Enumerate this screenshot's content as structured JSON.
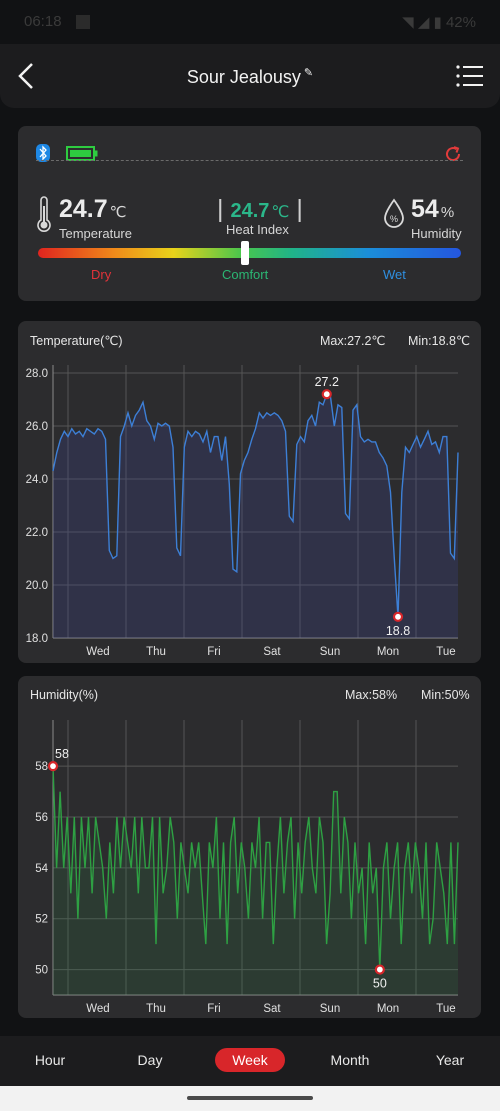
{
  "status": {
    "time": "06:18",
    "battery": "42%"
  },
  "header": {
    "title": "Sour Jealousy"
  },
  "summary": {
    "temperature": {
      "value": "24.7",
      "unit": "℃",
      "label": "Temperature"
    },
    "heat_index": {
      "value": "24.7",
      "unit": "℃",
      "label": "Heat Index"
    },
    "humidity": {
      "value": "54",
      "unit": "%",
      "label": "Humidity"
    },
    "scale": {
      "dry": "Dry",
      "comfort": "Comfort",
      "wet": "Wet"
    },
    "comfort_level": 0.49
  },
  "colors": {
    "accent": "#d8262a",
    "temp_line": "#3d7fd6",
    "hum_line": "#2ea043",
    "heat_index": "#2bb78a",
    "dry": "#e0333a",
    "comfort": "#2bb673",
    "wet": "#2f8fe0",
    "bluetooth": "#1e88e5",
    "battery": "#2ecc40"
  },
  "chart_data": [
    {
      "type": "line",
      "title": "Temperature(℃)",
      "max_label": "Max:27.2℃",
      "min_label": "Min:18.8℃",
      "ylim": [
        18,
        28
      ],
      "yticks": [
        "28.0",
        "26.0",
        "24.0",
        "22.0",
        "20.0",
        "18.0"
      ],
      "xticks": [
        "Wed",
        "Thu",
        "Fri",
        "Sat",
        "Sun",
        "Mon",
        "Tue"
      ],
      "values": [
        24.3,
        25.0,
        25.5,
        25.8,
        25.6,
        25.9,
        25.7,
        25.8,
        25.6,
        25.9,
        25.8,
        25.7,
        25.9,
        25.8,
        25.5,
        21.3,
        21.0,
        21.1,
        25.6,
        26.0,
        26.5,
        26.0,
        26.4,
        26.6,
        26.9,
        26.2,
        26.0,
        25.5,
        26.1,
        26.0,
        26.1,
        26.0,
        25.2,
        21.4,
        21.1,
        25.2,
        25.8,
        25.6,
        25.8,
        25.7,
        25.4,
        25.8,
        25.0,
        25.6,
        25.6,
        24.7,
        25.6,
        23.8,
        20.6,
        20.5,
        24.2,
        24.7,
        25.0,
        25.5,
        25.9,
        26.5,
        26.3,
        26.5,
        26.4,
        26.5,
        26.4,
        26.2,
        25.8,
        22.6,
        22.4,
        25.3,
        25.6,
        25.4,
        26.2,
        26.4,
        26.0,
        26.9,
        26.8,
        27.2,
        27.1,
        26.0,
        26.8,
        26.7,
        22.7,
        22.5,
        26.6,
        26.8,
        25.6,
        25.4,
        25.5,
        25.4,
        25.4,
        25.0,
        24.8,
        24.5,
        23.5,
        21.0,
        18.8,
        23.5,
        25.2,
        25.0,
        25.3,
        25.6,
        25.2,
        25.5,
        25.8,
        25.3,
        25.4,
        25.0,
        25.6,
        25.6,
        21.2,
        21.0,
        25.0
      ],
      "max_point": {
        "label": "27.2"
      },
      "min_point": {
        "label": "18.8"
      }
    },
    {
      "type": "line",
      "title": "Humidity(%)",
      "max_label": "Max:58%",
      "min_label": "Min:50%",
      "ylim": [
        49,
        59.5
      ],
      "yticks": [
        "58",
        "56",
        "54",
        "52",
        "50"
      ],
      "xticks": [
        "Wed",
        "Thu",
        "Fri",
        "Sat",
        "Sun",
        "Mon",
        "Tue"
      ],
      "values": [
        58,
        54,
        57,
        54,
        56,
        53,
        56,
        52,
        56,
        54,
        56,
        53,
        56,
        55,
        54,
        52,
        55,
        53,
        56,
        54,
        56,
        55,
        54,
        56,
        53,
        56,
        54,
        54,
        56,
        51,
        56,
        53,
        54,
        56,
        55,
        52,
        55,
        54,
        53,
        55,
        54,
        55,
        53,
        51,
        55,
        54,
        56,
        52,
        55,
        51,
        55,
        56,
        53,
        55,
        54,
        52,
        55,
        54,
        56,
        52,
        55,
        55,
        51,
        54,
        56,
        53,
        55,
        56,
        52,
        55,
        53,
        55,
        56,
        54,
        53,
        56,
        55,
        51,
        53,
        57,
        57,
        53,
        56,
        55,
        52,
        55,
        53,
        54,
        51,
        55,
        53,
        54,
        50,
        54,
        55,
        52,
        54,
        55,
        51,
        54,
        55,
        53,
        55,
        54,
        52,
        55,
        51,
        52,
        55,
        54,
        53,
        51,
        55,
        51,
        55
      ],
      "max_point": {
        "label": "58"
      },
      "min_point": {
        "label": "50"
      }
    }
  ],
  "tabs": [
    "Hour",
    "Day",
    "Week",
    "Month",
    "Year"
  ],
  "active_tab": "Week"
}
